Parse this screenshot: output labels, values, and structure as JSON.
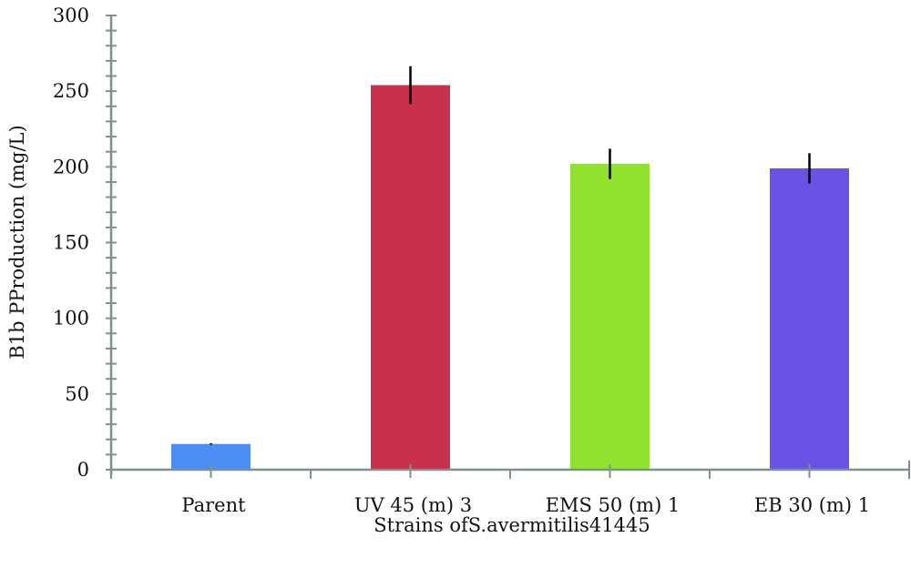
{
  "chart_data": {
    "type": "bar",
    "title": "",
    "xlabel": "Strains ofS.avermitilis41445",
    "ylabel": "B1b PProduction (mg/L)",
    "categories": [
      "Parent",
      "UV 45 (m) 3",
      "EMS 50 (m) 1",
      "EB 30 (m) 1"
    ],
    "values": [
      17,
      254,
      202,
      199
    ],
    "error_bars": [
      0.5,
      12.5,
      10,
      10
    ],
    "colors": [
      "#4d8ef5",
      "#c8304b",
      "#91e22f",
      "#6b52e6"
    ],
    "ylim": [
      0,
      300
    ],
    "yticks": [
      0,
      50,
      100,
      150,
      200,
      250,
      300
    ],
    "y_minor_tick_step": 10,
    "grid": false,
    "legend": null
  },
  "axes": {
    "y_title": "B1b PProduction (mg/L)",
    "x_title": "Strains ofS.avermitilis41445",
    "y_tick_labels": [
      "0",
      "50",
      "100",
      "150",
      "200",
      "250",
      "300"
    ]
  }
}
